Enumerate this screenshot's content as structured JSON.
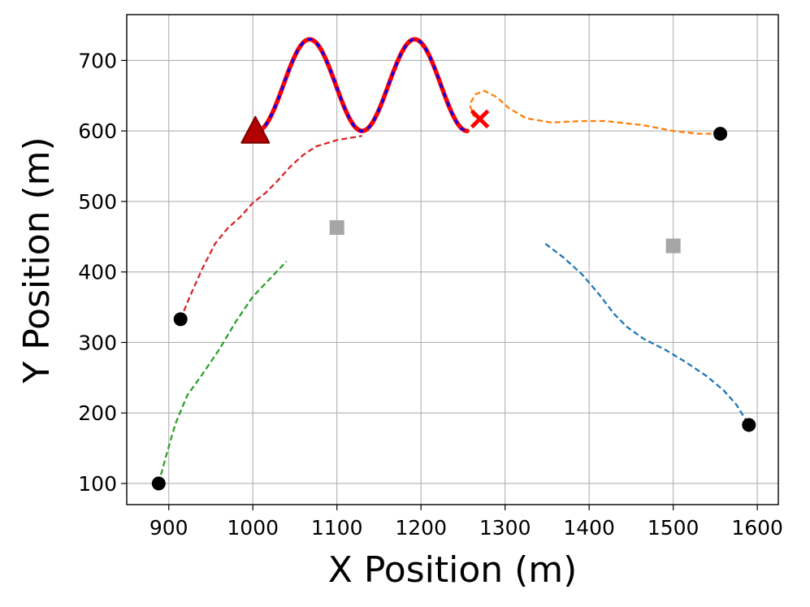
{
  "chart_data": {
    "type": "line",
    "title": "",
    "xlabel": "X Position (m)",
    "ylabel": "Y Position (m)",
    "xlim": [
      850,
      1625
    ],
    "ylim": [
      70,
      765
    ],
    "xticks": [
      900,
      1000,
      1100,
      1200,
      1300,
      1400,
      1500,
      1600
    ],
    "yticks": [
      100,
      200,
      300,
      400,
      500,
      600,
      700
    ],
    "grid": true,
    "legend": "none",
    "series": [
      {
        "style": "dashed",
        "color": "#1f77b4",
        "points": [
          [
            1348,
            440
          ],
          [
            1370,
            420
          ],
          [
            1392,
            396
          ],
          [
            1412,
            368
          ],
          [
            1430,
            340
          ],
          [
            1445,
            322
          ],
          [
            1465,
            305
          ],
          [
            1490,
            290
          ],
          [
            1515,
            272
          ],
          [
            1540,
            252
          ],
          [
            1560,
            232
          ],
          [
            1575,
            212
          ],
          [
            1590,
            183
          ]
        ]
      },
      {
        "style": "dashed",
        "color": "#ff7f0e",
        "points": [
          [
            1556,
            596
          ],
          [
            1530,
            596
          ],
          [
            1500,
            600
          ],
          [
            1465,
            608
          ],
          [
            1420,
            614
          ],
          [
            1390,
            614
          ],
          [
            1355,
            612
          ],
          [
            1325,
            618
          ],
          [
            1305,
            632
          ],
          [
            1290,
            648
          ],
          [
            1275,
            657
          ],
          [
            1265,
            652
          ],
          [
            1258,
            638
          ],
          [
            1262,
            622
          ],
          [
            1270,
            617
          ]
        ]
      },
      {
        "style": "dashed",
        "color": "#2ca02c",
        "points": [
          [
            888,
            100
          ],
          [
            897,
            140
          ],
          [
            908,
            185
          ],
          [
            922,
            225
          ],
          [
            940,
            255
          ],
          [
            960,
            290
          ],
          [
            980,
            330
          ],
          [
            1000,
            365
          ],
          [
            1020,
            390
          ],
          [
            1040,
            415
          ]
        ]
      },
      {
        "style": "dashed",
        "color": "#d62728",
        "points": [
          [
            914,
            333
          ],
          [
            925,
            365
          ],
          [
            940,
            405
          ],
          [
            955,
            440
          ],
          [
            970,
            462
          ],
          [
            985,
            478
          ],
          [
            1000,
            498
          ],
          [
            1015,
            512
          ],
          [
            1030,
            530
          ],
          [
            1045,
            550
          ],
          [
            1060,
            566
          ],
          [
            1075,
            578
          ],
          [
            1100,
            587
          ],
          [
            1130,
            593
          ]
        ]
      },
      {
        "style": "sinusoid",
        "color": "#ff0000",
        "overlay_color": "#0000ff",
        "x_start": 1005,
        "x_end": 1255,
        "y_center": 665,
        "amplitude": 65,
        "period": 125
      }
    ],
    "markers": [
      {
        "shape": "circle",
        "color": "#000000",
        "x": 888,
        "y": 100
      },
      {
        "shape": "circle",
        "color": "#000000",
        "x": 914,
        "y": 333
      },
      {
        "shape": "circle",
        "color": "#000000",
        "x": 1556,
        "y": 596
      },
      {
        "shape": "circle",
        "color": "#000000",
        "x": 1590,
        "y": 183
      },
      {
        "shape": "square",
        "color": "#a6a6a6",
        "x": 1100,
        "y": 463
      },
      {
        "shape": "square",
        "color": "#a6a6a6",
        "x": 1500,
        "y": 437
      },
      {
        "shape": "triangle",
        "color": "#b30000",
        "x": 1003,
        "y": 598
      },
      {
        "shape": "x",
        "color": "#ff0000",
        "x": 1270,
        "y": 617
      }
    ]
  }
}
